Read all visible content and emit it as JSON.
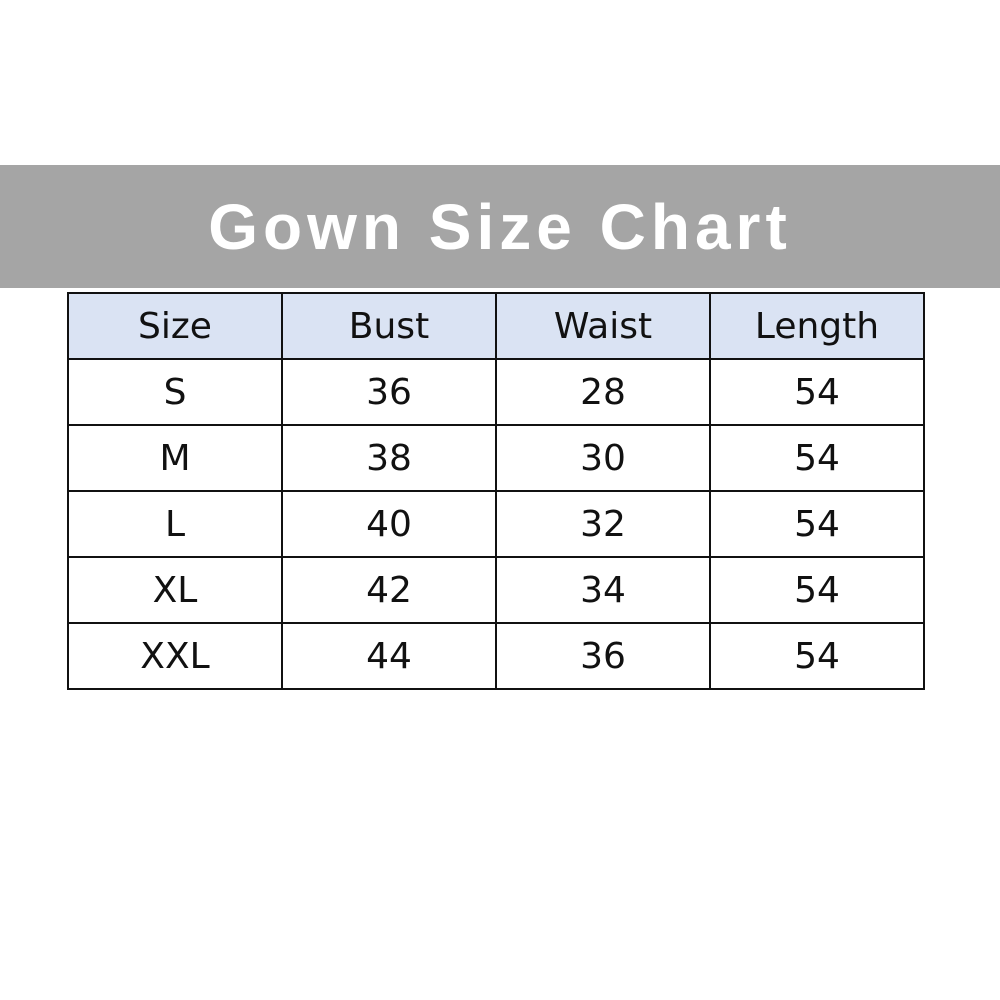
{
  "title": "Gown Size Chart",
  "colors": {
    "banner": "#a5a5a5",
    "header_bg": "#dae3f3"
  },
  "table": {
    "headers": [
      "Size",
      "Bust",
      "Waist",
      "Length"
    ],
    "rows": [
      [
        "S",
        "36",
        "28",
        "54"
      ],
      [
        "M",
        "38",
        "30",
        "54"
      ],
      [
        "L",
        "40",
        "32",
        "54"
      ],
      [
        "XL",
        "42",
        "34",
        "54"
      ],
      [
        "XXL",
        "44",
        "36",
        "54"
      ]
    ]
  }
}
